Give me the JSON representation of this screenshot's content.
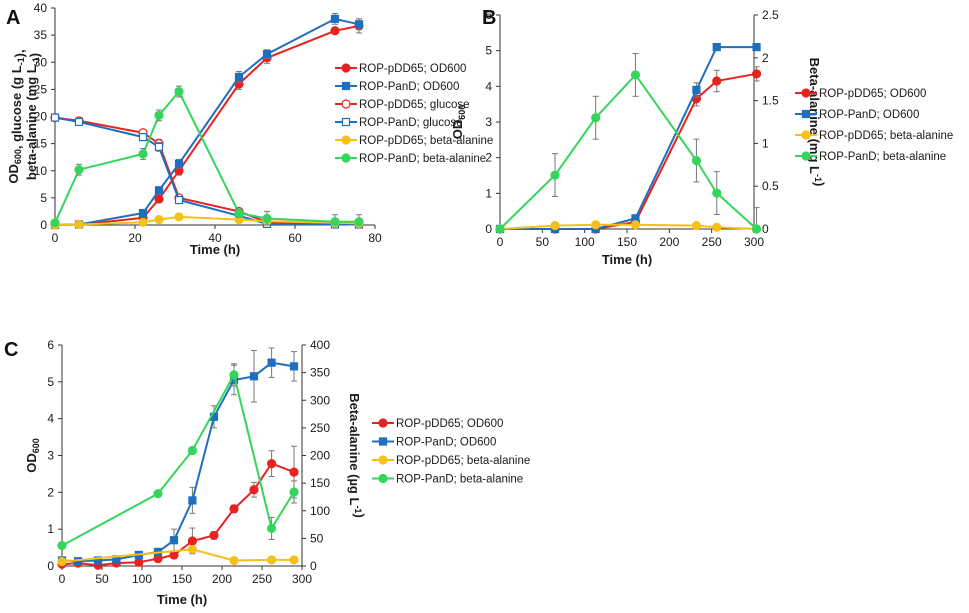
{
  "colors": {
    "red": "#e8221f",
    "blue": "#1f6fbf",
    "yellow": "#f5c018",
    "green": "#33d65a",
    "err": "#777777",
    "axis": "#333333"
  },
  "chart_data": [
    {
      "type": "line",
      "panel_label": "A",
      "title": "",
      "xlabel": "Time (h)",
      "ylabel": "OD600, glucose (g L-1), beta-alanine (mg L-1)",
      "ylabel_lines": [
        [
          "OD",
          "600",
          ", glucose (g L",
          "-1",
          "),"
        ],
        [
          "beta-alanine (mg L",
          "-1",
          ")"
        ]
      ],
      "xlim": [
        0,
        80
      ],
      "ylim": [
        0,
        40
      ],
      "xticks": [
        "0",
        "20",
        "40",
        "60",
        "80"
      ],
      "yticks": [
        "0",
        "5",
        "10",
        "15",
        "20",
        "25",
        "30",
        "35",
        "40"
      ],
      "series": [
        {
          "name": "ROP-pDD65; OD600",
          "color": "red",
          "marker": "circle",
          "filled": true,
          "axis": "left",
          "x": [
            0,
            6,
            22,
            26,
            31,
            46,
            53,
            70,
            76
          ],
          "y": [
            0,
            0.1,
            1.3,
            4.8,
            10,
            26,
            30.8,
            35.8,
            36.7
          ],
          "err": [
            0,
            0,
            0.3,
            0.5,
            0.8,
            1,
            1,
            0.5,
            1.3
          ]
        },
        {
          "name": "ROP-PanD; OD600",
          "color": "blue",
          "marker": "square",
          "filled": true,
          "axis": "left",
          "x": [
            0,
            6,
            22,
            26,
            31,
            46,
            53,
            70,
            76
          ],
          "y": [
            0,
            0.1,
            2.2,
            6.4,
            11.3,
            27.3,
            31.5,
            38,
            37
          ],
          "err": [
            0,
            0,
            0.3,
            0.5,
            0.8,
            1,
            0.8,
            1,
            1
          ]
        },
        {
          "name": "ROP-pDD65; glucose",
          "color": "red",
          "marker": "circle",
          "filled": false,
          "axis": "left",
          "x": [
            0,
            6,
            22,
            26,
            31,
            46,
            53,
            70,
            76
          ],
          "y": [
            19.8,
            19.2,
            17,
            15,
            5,
            2.5,
            0.5,
            0.2,
            0.2
          ],
          "err": [
            0.5,
            0.5,
            0.5,
            0.8,
            0.5,
            0.3,
            0.2,
            0,
            0
          ]
        },
        {
          "name": "ROP-PanD; glucose",
          "color": "blue",
          "marker": "square",
          "filled": false,
          "axis": "left",
          "x": [
            0,
            6,
            22,
            26,
            31,
            46,
            53,
            70,
            76
          ],
          "y": [
            19.8,
            19,
            16.2,
            14.4,
            4.6,
            1.7,
            0.2,
            0.1,
            0.1
          ],
          "err": [
            0.5,
            0.5,
            0.5,
            0.8,
            0.5,
            0.3,
            0.2,
            0,
            0
          ]
        },
        {
          "name": "ROP-pDD65; beta-alanine",
          "color": "yellow",
          "marker": "circle",
          "filled": true,
          "axis": "left",
          "x": [
            0,
            6,
            22,
            26,
            31,
            46,
            53,
            70,
            76
          ],
          "y": [
            0,
            0.1,
            0.5,
            1,
            1.5,
            1,
            0.7,
            0.4,
            0.3
          ],
          "err": [
            0,
            0,
            0.1,
            0.1,
            0.2,
            0.2,
            0.1,
            0.1,
            0.1
          ]
        },
        {
          "name": "ROP-PanD; beta-alanine",
          "color": "green",
          "marker": "circle",
          "filled": true,
          "axis": "left",
          "x": [
            0,
            6,
            22,
            26,
            31,
            46,
            53,
            70,
            76
          ],
          "y": [
            0.4,
            10.2,
            13.1,
            20.2,
            24.6,
            2.2,
            1.2,
            0.6,
            0.6
          ],
          "err": [
            0,
            1,
            1,
            1,
            1,
            0.8,
            1.3,
            1.3,
            1.3
          ]
        }
      ]
    },
    {
      "type": "line",
      "panel_label": "B",
      "title": "",
      "xlabel": "Time (h)",
      "ylabel": "OD600",
      "ylabel_lines": [
        [
          "OD",
          "600"
        ]
      ],
      "y2label": "Beta-alanine (mg L-1)",
      "y2label_parts": [
        "Beta-alanine (mg L",
        "-1",
        ")"
      ],
      "xlim": [
        0,
        300
      ],
      "ylim": [
        0,
        6
      ],
      "y2lim": [
        0,
        2.5
      ],
      "xticks": [
        "0",
        "50",
        "100",
        "150",
        "200",
        "250",
        "300"
      ],
      "yticks": [
        "0",
        "1",
        "2",
        "3",
        "4",
        "5",
        "6"
      ],
      "y2ticks": [
        "0",
        "0.5",
        "1",
        "1.5",
        "2",
        "2.5"
      ],
      "series": [
        {
          "name": "ROP-pDD65; OD600",
          "color": "red",
          "marker": "circle",
          "filled": true,
          "axis": "left",
          "x": [
            0,
            65,
            113,
            160,
            232,
            256,
            303
          ],
          "y": [
            0,
            0,
            0,
            0.2,
            3.65,
            4.15,
            4.35
          ],
          "err": [
            0,
            0,
            0,
            0,
            0.2,
            0.3,
            0.2
          ]
        },
        {
          "name": "ROP-PanD; OD600",
          "color": "blue",
          "marker": "square",
          "filled": true,
          "axis": "left",
          "x": [
            0,
            65,
            113,
            160,
            232,
            256,
            303
          ],
          "y": [
            0,
            0,
            0,
            0.3,
            3.9,
            5.1,
            5.1
          ],
          "err": [
            0,
            0,
            0,
            0,
            0.2,
            0,
            0
          ]
        },
        {
          "name": "ROP-pDD65; beta-alanine",
          "color": "yellow",
          "marker": "circle",
          "filled": true,
          "axis": "right",
          "x": [
            0,
            65,
            113,
            160,
            232,
            256,
            303
          ],
          "y": [
            0,
            0.04,
            0.05,
            0.05,
            0.04,
            0.02,
            0
          ],
          "err": [
            0,
            0,
            0,
            0,
            0,
            0,
            0
          ]
        },
        {
          "name": "ROP-PanD; beta-alanine",
          "color": "green",
          "marker": "circle",
          "filled": true,
          "axis": "right",
          "x": [
            0,
            65,
            113,
            160,
            232,
            256,
            303
          ],
          "y": [
            0,
            0.63,
            1.3,
            1.8,
            0.8,
            0.42,
            0
          ],
          "err": [
            0,
            0.25,
            0.25,
            0.25,
            0.25,
            0.25,
            0.25
          ]
        }
      ]
    },
    {
      "type": "line",
      "panel_label": "C",
      "title": "",
      "xlabel": "Time (h)",
      "ylabel": "OD600",
      "ylabel_lines": [
        [
          "OD",
          "600"
        ]
      ],
      "y2label": "Beta-alanine (µg L-1)",
      "y2label_parts": [
        "Beta-alanine (µg L",
        "-1",
        ")"
      ],
      "xlim": [
        0,
        300
      ],
      "ylim": [
        0,
        6
      ],
      "y2lim": [
        0,
        400
      ],
      "xticks": [
        "0",
        "50",
        "100",
        "150",
        "200",
        "250",
        "300"
      ],
      "yticks": [
        "0",
        "1",
        "2",
        "3",
        "4",
        "5",
        "6"
      ],
      "y2ticks": [
        "0",
        "50",
        "100",
        "150",
        "200",
        "250",
        "300",
        "350",
        "400"
      ],
      "series": [
        {
          "name": "ROP-pDD65; OD600",
          "color": "red",
          "marker": "circle",
          "filled": true,
          "axis": "left",
          "x": [
            0,
            20,
            45,
            68,
            96,
            120,
            140,
            163,
            190,
            215,
            240,
            262,
            290
          ],
          "y": [
            0.05,
            0.08,
            0.02,
            0.08,
            0.1,
            0.2,
            0.3,
            0.68,
            0.83,
            1.55,
            2.07,
            2.78,
            2.55
          ],
          "err": [
            0,
            0,
            0,
            0,
            0,
            0,
            0.1,
            0.35,
            0.1,
            0.1,
            0.2,
            0.35,
            0.7
          ]
        },
        {
          "name": "ROP-PanD; OD600",
          "color": "blue",
          "marker": "square",
          "filled": true,
          "axis": "left",
          "x": [
            0,
            20,
            45,
            68,
            96,
            120,
            140,
            163,
            190,
            215,
            240,
            262,
            290
          ],
          "y": [
            0.15,
            0.13,
            0.15,
            0.18,
            0.3,
            0.38,
            0.7,
            1.78,
            4.05,
            5.05,
            5.15,
            5.52,
            5.42
          ],
          "err": [
            0,
            0,
            0,
            0,
            0,
            0.1,
            0.3,
            0.35,
            0.3,
            0.4,
            0.7,
            0.4,
            0.4
          ]
        },
        {
          "name": "ROP-pDD65; beta-alanine",
          "color": "yellow",
          "marker": "circle",
          "filled": true,
          "axis": "right",
          "x": [
            0,
            163,
            215,
            262,
            290
          ],
          "y": [
            8,
            30,
            10,
            11,
            11
          ],
          "err": [
            0,
            0,
            0,
            0,
            0
          ]
        },
        {
          "name": "ROP-PanD; beta-alanine",
          "color": "green",
          "marker": "circle",
          "filled": true,
          "axis": "right",
          "x": [
            0,
            120,
            163,
            215,
            262,
            290
          ],
          "y": [
            37,
            131,
            209,
            346,
            68,
            134
          ],
          "err": [
            0,
            0,
            0,
            20,
            20,
            20
          ]
        }
      ]
    }
  ]
}
